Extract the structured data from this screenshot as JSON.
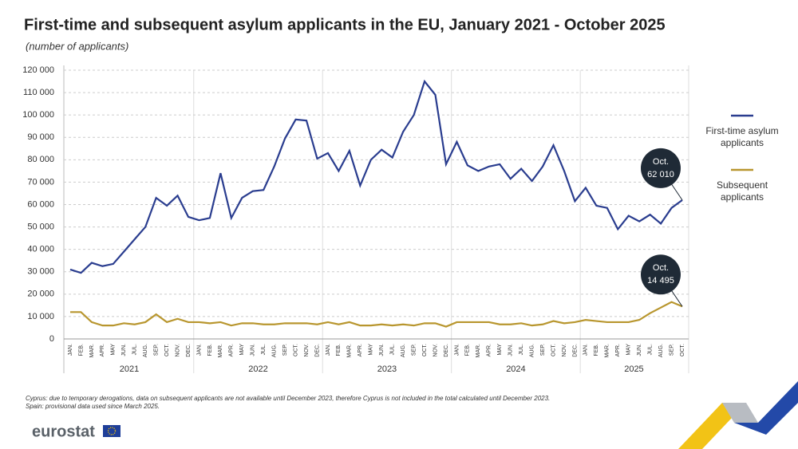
{
  "chart_data": {
    "type": "line",
    "title": "First-time and subsequent asylum applicants in the EU, January 2021 - October 2025",
    "subtitle": "(number of applicants)",
    "categories": [
      "JAN.",
      "FEB.",
      "MAR.",
      "APR.",
      "MAY",
      "JUN.",
      "JUL.",
      "AUG.",
      "SEP.",
      "OCT.",
      "NOV.",
      "DEC.",
      "JAN.",
      "FEB.",
      "MAR.",
      "APR.",
      "MAY",
      "JUN.",
      "JUL.",
      "AUG.",
      "SEP.",
      "OCT.",
      "NOV.",
      "DEC.",
      "JAN.",
      "FEB.",
      "MAR.",
      "APR.",
      "MAY",
      "JUN.",
      "JUL.",
      "AUG.",
      "SEP.",
      "OCT.",
      "NOV.",
      "DEC.",
      "JAN.",
      "FEB.",
      "MAR.",
      "APR.",
      "MAY",
      "JUN.",
      "JUL.",
      "AUG.",
      "SEP.",
      "OCT.",
      "NOV.",
      "DEC.",
      "JAN.",
      "FEB.",
      "MAR.",
      "APR.",
      "MAY",
      "JUN.",
      "JUL.",
      "AUG.",
      "SEP.",
      "OCT."
    ],
    "years": [
      "2021",
      "2022",
      "2023",
      "2024",
      "2025"
    ],
    "series": [
      {
        "name": "First-time asylum applicants",
        "color": "#2a3d8f",
        "callout_label": "Oct.",
        "values": [
          31000,
          29500,
          34000,
          32500,
          33500,
          39000,
          44500,
          50000,
          63000,
          59500,
          64000,
          54500,
          53000,
          54000,
          74000,
          54000,
          63000,
          66000,
          66500,
          77000,
          89500,
          98000,
          97500,
          80500,
          83000,
          75000,
          84000,
          68500,
          80000,
          84500,
          81000,
          92500,
          100000,
          115000,
          109000,
          78000,
          88000,
          77500,
          75000,
          77000,
          78000,
          71500,
          76000,
          70500,
          77000,
          86500,
          75000,
          61500,
          67500,
          59500,
          58500,
          49000,
          55000,
          52500,
          55500,
          51500,
          58500,
          62010
        ],
        "value_labels": [
          null,
          null,
          null,
          null,
          null,
          null,
          null,
          null,
          null,
          null,
          null,
          null,
          null,
          null,
          null,
          null,
          null,
          null,
          null,
          null,
          null,
          null,
          null,
          null,
          null,
          null,
          null,
          null,
          null,
          null,
          null,
          null,
          null,
          null,
          null,
          null,
          null,
          null,
          null,
          null,
          null,
          null,
          null,
          null,
          null,
          null,
          null,
          null,
          null,
          null,
          null,
          null,
          null,
          null,
          null,
          null,
          null,
          "62 010"
        ]
      },
      {
        "name": "Subsequent applicants",
        "color": "#b8962e",
        "callout_label": "Oct.",
        "values": [
          12000,
          12000,
          7500,
          6000,
          6000,
          7000,
          6500,
          7500,
          11000,
          7500,
          9000,
          7500,
          7500,
          7000,
          7500,
          6000,
          7000,
          7000,
          6500,
          6500,
          7000,
          7000,
          7000,
          6500,
          7500,
          6500,
          7500,
          6000,
          6000,
          6500,
          6000,
          6500,
          6000,
          7000,
          7000,
          5500,
          7500,
          7500,
          7500,
          7500,
          6500,
          6500,
          7000,
          6000,
          6500,
          8000,
          7000,
          7500,
          8500,
          8000,
          7500,
          7500,
          7500,
          8500,
          11500,
          14000,
          16500,
          14495
        ],
        "value_labels": [
          null,
          null,
          null,
          null,
          null,
          null,
          null,
          null,
          null,
          null,
          null,
          null,
          null,
          null,
          null,
          null,
          null,
          null,
          null,
          null,
          null,
          null,
          null,
          null,
          null,
          null,
          null,
          null,
          null,
          null,
          null,
          null,
          null,
          null,
          null,
          null,
          null,
          null,
          null,
          null,
          null,
          null,
          null,
          null,
          null,
          null,
          null,
          null,
          null,
          null,
          null,
          null,
          null,
          null,
          null,
          null,
          null,
          "14 495"
        ]
      }
    ],
    "ylim": [
      0,
      120000
    ],
    "yticks": [
      0,
      {
        "value": 10000,
        "label": "10 000"
      },
      {
        "value": 20000,
        "label": "20 000"
      },
      {
        "value": 30000,
        "label": "30 000"
      },
      {
        "value": 40000,
        "label": "40 000"
      },
      {
        "value": 50000,
        "label": "50 000"
      },
      {
        "value": 60000,
        "label": "60 000"
      },
      {
        "value": 70000,
        "label": "70 000"
      },
      {
        "value": 80000,
        "label": "80 000"
      },
      {
        "value": 90000,
        "label": "90 000"
      },
      {
        "value": 100000,
        "label": "100 000"
      },
      {
        "value": 110000,
        "label": "110 000"
      },
      {
        "value": 120000,
        "label": "120 000"
      }
    ],
    "grid": true,
    "legend": "right",
    "footnotes": [
      "Cyprus: due to temporary derogations, data on subsequent applicants are not available until December 2023, therefore Cyprus is not included in the total calculated until December 2023.",
      "Spain: provisional data used since March 2025."
    ],
    "source": "eurostat"
  }
}
